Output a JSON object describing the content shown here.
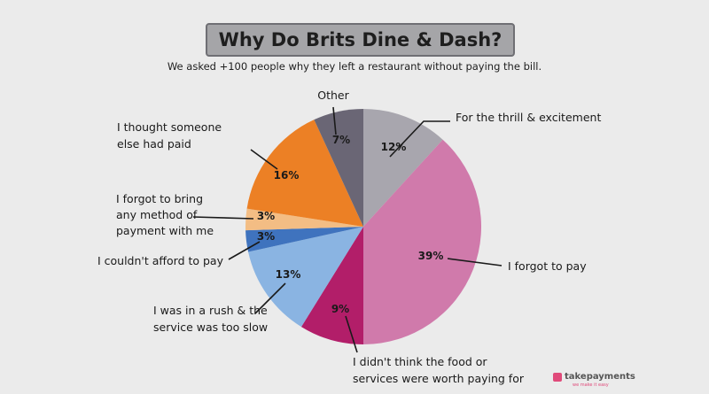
{
  "chart_data": {
    "type": "pie",
    "title": "Why Do Brits Dine & Dash?",
    "subtitle": "We asked +100 people why they left a restaurant without paying the bill.",
    "slices": [
      {
        "label": "For the thrill & excitement",
        "value": 12,
        "value_label": "12%",
        "color": "#a8a6ae"
      },
      {
        "label": "I forgot to pay",
        "value": 39,
        "value_label": "39%",
        "color": "#d07aab"
      },
      {
        "label": "I didn't think the food or services were worth paying for",
        "value": 9,
        "value_label": "9%",
        "color": "#b21e69"
      },
      {
        "label": "I was in a rush & the service was too slow",
        "value": 13,
        "value_label": "13%",
        "color": "#8ab4e2"
      },
      {
        "label": "I couldn't afford to pay",
        "value": 3,
        "value_label": "3%",
        "color": "#3f73be"
      },
      {
        "label": "I forgot to bring any method of payment with me",
        "value": 3,
        "value_label": "3%",
        "color": "#f3bd84"
      },
      {
        "label": "I thought someone else had paid",
        "value": 16,
        "value_label": "16%",
        "color": "#ec8025"
      },
      {
        "label": "Other",
        "value": 7,
        "value_label": "7%",
        "color": "#6a6675"
      }
    ]
  },
  "branding": {
    "name": "takepayments",
    "tagline": "we make it easy",
    "color": "#e04a7a"
  }
}
